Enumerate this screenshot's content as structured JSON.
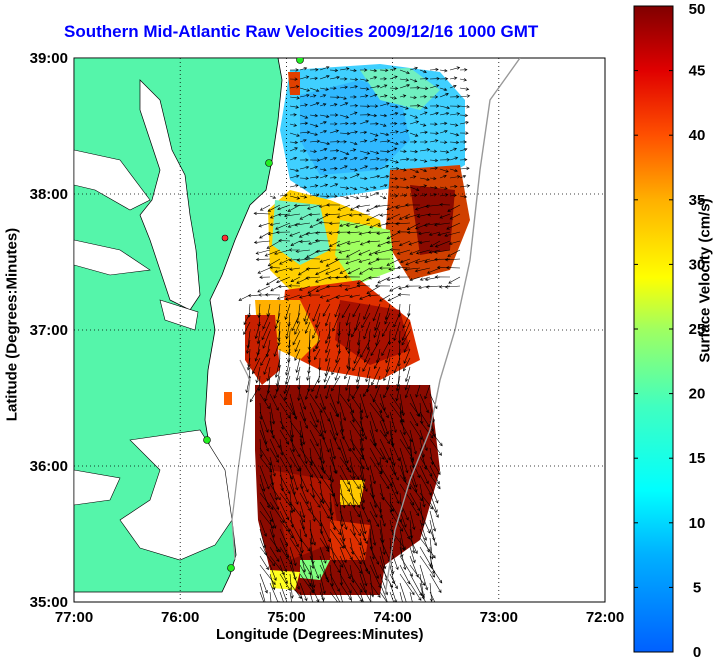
{
  "title": "Southern Mid-Atlantic Raw Velocities 2009/12/16 1000 GMT",
  "xlabel": "Longitude (Degrees:Minutes)",
  "ylabel": "Latitude (Degrees:Minutes)",
  "colorbar_label": "Surface Velocity (cm/s)",
  "colors": {
    "land": "#55f5aa",
    "title": "#0000ff",
    "grid": "#000000"
  },
  "chart_data": {
    "type": "heatmap",
    "x_ticks": [
      "77:00",
      "76:00",
      "75:00",
      "74:00",
      "73:00",
      "72:00"
    ],
    "y_ticks": [
      "39:00",
      "38:00",
      "37:00",
      "36:00",
      "35:00"
    ],
    "xlim": [
      -77,
      -72
    ],
    "ylim": [
      35,
      39
    ],
    "grid": true,
    "colorbar": {
      "range": [
        0,
        50
      ],
      "ticks": [
        "50",
        "45",
        "40",
        "35",
        "30",
        "25",
        "20",
        "15",
        "10",
        "5",
        "0"
      ],
      "colormap": "jet"
    },
    "velocity_regions": [
      {
        "lon": -74.6,
        "lat": 38.5,
        "speed": 12
      },
      {
        "lon": -74.0,
        "lat": 38.3,
        "speed": 16
      },
      {
        "lon": -74.8,
        "lat": 37.9,
        "speed": 14
      },
      {
        "lon": -73.4,
        "lat": 37.9,
        "speed": 40
      },
      {
        "lon": -74.2,
        "lat": 37.6,
        "speed": 28
      },
      {
        "lon": -74.5,
        "lat": 36.9,
        "speed": 44
      },
      {
        "lon": -75.1,
        "lat": 36.9,
        "speed": 30
      },
      {
        "lon": -74.3,
        "lat": 36.3,
        "speed": 48
      },
      {
        "lon": -74.5,
        "lat": 35.6,
        "speed": 47
      },
      {
        "lon": -74.6,
        "lat": 35.2,
        "speed": 45
      }
    ]
  }
}
